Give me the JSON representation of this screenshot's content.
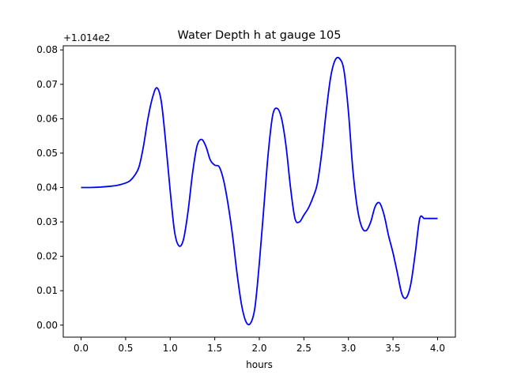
{
  "chart_data": {
    "type": "line",
    "title": "Water Depth h at gauge 105",
    "xlabel": "hours",
    "ylabel": "",
    "offset_label": "+1.014e2",
    "xlim": [
      -0.2,
      4.2
    ],
    "ylim": [
      -0.0035,
      0.0812
    ],
    "x_ticks": [
      0.0,
      0.5,
      1.0,
      1.5,
      2.0,
      2.5,
      3.0,
      3.5,
      4.0
    ],
    "x_tick_labels": [
      "0.0",
      "0.5",
      "1.0",
      "1.5",
      "2.0",
      "2.5",
      "3.0",
      "3.5",
      "4.0"
    ],
    "y_ticks": [
      0.0,
      0.01,
      0.02,
      0.03,
      0.04,
      0.05,
      0.06,
      0.07,
      0.08
    ],
    "y_tick_labels": [
      "0.00",
      "0.01",
      "0.02",
      "0.03",
      "0.04",
      "0.05",
      "0.06",
      "0.07",
      "0.08"
    ],
    "grid": false,
    "series": [
      {
        "color": "#0000ff",
        "x": [
          0.0,
          0.1,
          0.2,
          0.3,
          0.4,
          0.5,
          0.55,
          0.6,
          0.65,
          0.7,
          0.75,
          0.8,
          0.85,
          0.9,
          0.95,
          1.0,
          1.05,
          1.1,
          1.15,
          1.2,
          1.25,
          1.3,
          1.35,
          1.4,
          1.45,
          1.5,
          1.55,
          1.6,
          1.65,
          1.7,
          1.75,
          1.8,
          1.85,
          1.9,
          1.95,
          2.0,
          2.05,
          2.1,
          2.15,
          2.2,
          2.25,
          2.3,
          2.35,
          2.4,
          2.45,
          2.5,
          2.55,
          2.6,
          2.65,
          2.7,
          2.75,
          2.8,
          2.85,
          2.9,
          2.95,
          3.0,
          3.05,
          3.1,
          3.15,
          3.2,
          3.25,
          3.3,
          3.35,
          3.4,
          3.45,
          3.5,
          3.55,
          3.6,
          3.65,
          3.7,
          3.75,
          3.8,
          3.85,
          3.9,
          3.95,
          4.0
        ],
        "y": [
          0.04,
          0.04,
          0.0401,
          0.0403,
          0.0406,
          0.0413,
          0.042,
          0.0435,
          0.046,
          0.052,
          0.06,
          0.066,
          0.069,
          0.065,
          0.053,
          0.039,
          0.027,
          0.023,
          0.025,
          0.033,
          0.044,
          0.052,
          0.054,
          0.052,
          0.048,
          0.0465,
          0.046,
          0.042,
          0.035,
          0.026,
          0.015,
          0.006,
          0.001,
          0.0005,
          0.005,
          0.018,
          0.034,
          0.05,
          0.061,
          0.063,
          0.06,
          0.052,
          0.04,
          0.031,
          0.03,
          0.032,
          0.034,
          0.037,
          0.041,
          0.05,
          0.062,
          0.072,
          0.077,
          0.0775,
          0.074,
          0.062,
          0.045,
          0.034,
          0.0285,
          0.0275,
          0.03,
          0.0345,
          0.0355,
          0.032,
          0.026,
          0.021,
          0.015,
          0.009,
          0.008,
          0.012,
          0.021,
          0.031,
          0.031,
          0.031,
          0.031,
          0.031
        ]
      }
    ]
  }
}
